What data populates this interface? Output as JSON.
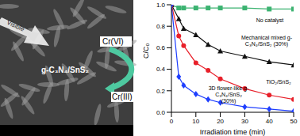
{
  "panel": {
    "light": "Visible",
    "material": "g-C₃N₄/SnS₂",
    "reactant": "Cr(VI)",
    "product": "Cr(III)"
  },
  "chart_data": {
    "type": "line",
    "x_label": "Irradiation time (min)",
    "y_label": "C/C₀",
    "x": [
      0,
      3,
      5,
      10,
      15,
      20,
      30,
      40,
      50
    ],
    "xlim": [
      0,
      50
    ],
    "xticks": [
      0,
      10,
      20,
      30,
      40,
      50
    ],
    "ylim": [
      0,
      1
    ],
    "yticks": [
      {
        "value": 0,
        "label": "0.0"
      },
      0.2,
      0.4,
      0.6,
      0.8,
      {
        "value": 1,
        "label": "1.0"
      }
    ],
    "grid": false,
    "series": [
      {
        "name": "No catalyst",
        "color": "#3cb371",
        "marker": "square",
        "values": [
          1.0,
          0.97,
          0.97,
          0.97,
          0.97,
          0.97,
          0.97,
          0.96,
          0.96
        ]
      },
      {
        "name": "Mechanical mixed g-C₃N₄/SnS₂ (30%)",
        "color": "#111111",
        "marker": "triangle",
        "values": [
          1.0,
          0.87,
          0.78,
          0.72,
          0.63,
          0.57,
          0.52,
          0.47,
          0.44
        ]
      },
      {
        "name": "TiO₂/SnS₂",
        "color": "#e8202a",
        "marker": "circle",
        "values": [
          1.0,
          0.71,
          0.62,
          0.46,
          0.39,
          0.31,
          0.22,
          0.16,
          0.12
        ]
      },
      {
        "name": "3D flower-like g-C₃N₄/SnS₂ (30%)",
        "color": "#1f3fff",
        "marker": "diamond",
        "values": [
          1.0,
          0.33,
          0.25,
          0.17,
          0.12,
          0.09,
          0.05,
          0.03,
          0.01
        ]
      }
    ]
  }
}
